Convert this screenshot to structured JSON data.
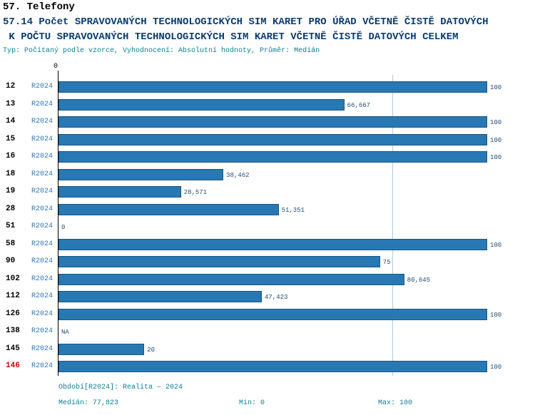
{
  "header": {
    "section_title": "57. Telefony",
    "title_line1": "57.14 Počet SPRAVOVANÝCH TECHNOLOGICKÝCH SIM KARET PRO ÚŘAD VČETNĚ ČISTĚ DATOVÝCH",
    "title_line2": " K POČTU SPRAVOVANÝCH TECHNOLOGICKÝCH SIM KARET VČETNĚ ČISTĚ DATOVÝCH CELKEM",
    "meta_line": "Typ: Počítaný podle vzorce, Vyhodnocení: Absolutní hodnoty, Průměr: Medián"
  },
  "chart_data": {
    "type": "bar",
    "orientation": "horizontal",
    "xlim": [
      0,
      100
    ],
    "origin_tick_label": "0",
    "median_value": 77.823,
    "grid": "median-line-only",
    "colors": {
      "bar_fill": "#2878b4",
      "bar_border": "#1a567f",
      "median_line": "#a9cce3",
      "row_id": "#000000",
      "row_id_highlight": "#cc0000",
      "period": "#2e75b6",
      "value_label": "#1f4e79",
      "title": "#0a3c6e",
      "meta": "#0c7f93"
    },
    "rows": [
      {
        "id": "12",
        "period": "R2024",
        "value": 100,
        "value_label": "100",
        "highlight": false
      },
      {
        "id": "13",
        "period": "R2024",
        "value": 66.667,
        "value_label": "66,667",
        "highlight": false
      },
      {
        "id": "14",
        "period": "R2024",
        "value": 100,
        "value_label": "100",
        "highlight": false
      },
      {
        "id": "15",
        "period": "R2024",
        "value": 100,
        "value_label": "100",
        "highlight": false
      },
      {
        "id": "16",
        "period": "R2024",
        "value": 100,
        "value_label": "100",
        "highlight": false
      },
      {
        "id": "18",
        "period": "R2024",
        "value": 38.462,
        "value_label": "38,462",
        "highlight": false
      },
      {
        "id": "19",
        "period": "R2024",
        "value": 28.571,
        "value_label": "28,571",
        "highlight": false
      },
      {
        "id": "28",
        "period": "R2024",
        "value": 51.351,
        "value_label": "51,351",
        "highlight": false
      },
      {
        "id": "51",
        "period": "R2024",
        "value": 0,
        "value_label": "0",
        "highlight": false
      },
      {
        "id": "58",
        "period": "R2024",
        "value": 100,
        "value_label": "100",
        "highlight": false
      },
      {
        "id": "90",
        "period": "R2024",
        "value": 75,
        "value_label": "75",
        "highlight": false
      },
      {
        "id": "102",
        "period": "R2024",
        "value": 80.645,
        "value_label": "80,645",
        "highlight": false
      },
      {
        "id": "112",
        "period": "R2024",
        "value": 47.423,
        "value_label": "47,423",
        "highlight": false
      },
      {
        "id": "126",
        "period": "R2024",
        "value": 100,
        "value_label": "100",
        "highlight": false
      },
      {
        "id": "138",
        "period": "R2024",
        "value": null,
        "value_label": "NA",
        "highlight": false
      },
      {
        "id": "145",
        "period": "R2024",
        "value": 20,
        "value_label": "20",
        "highlight": false
      },
      {
        "id": "146",
        "period": "R2024",
        "value": 100,
        "value_label": "100",
        "highlight": true
      }
    ]
  },
  "footer": {
    "period_line": "Období[R2024]: Realita – 2024",
    "median_line": "Medián: 77,823",
    "min_line": "Min: 0",
    "max_line": "Max: 100"
  }
}
